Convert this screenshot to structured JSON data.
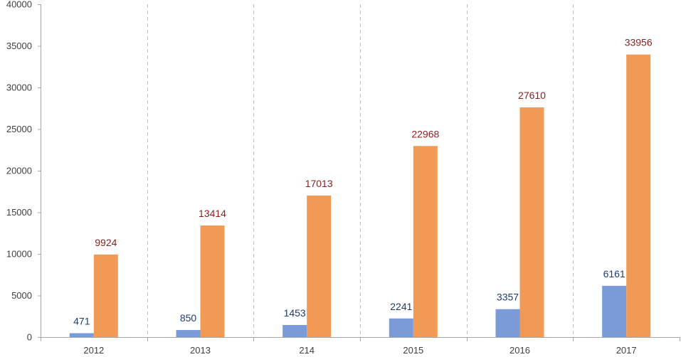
{
  "chart_data": {
    "type": "bar",
    "categories": [
      "2012",
      "2013",
      "214",
      "2015",
      "2016",
      "2017"
    ],
    "series": [
      {
        "values": [
          471,
          850,
          1453,
          2241,
          3357,
          6161
        ],
        "color": "#7A9BD8",
        "label_color": "#1F3B73"
      },
      {
        "values": [
          9924,
          13414,
          17013,
          22968,
          27610,
          33956
        ],
        "color": "#F19A56",
        "label_color": "#8B1E1E"
      }
    ],
    "ylim": [
      0,
      40000
    ],
    "yticks": [
      "0",
      "5000",
      "10000",
      "15000",
      "20000",
      "25000",
      "30000",
      "35000",
      "40000"
    ],
    "category_separators": "dashed",
    "grid": false,
    "legend": "none"
  }
}
